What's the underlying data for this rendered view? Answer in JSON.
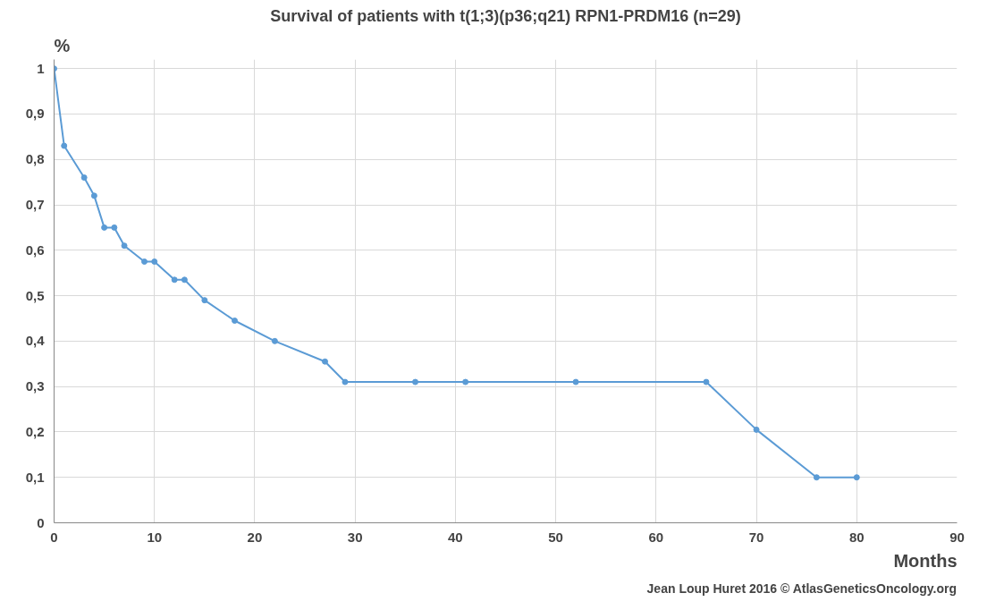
{
  "chart_data": {
    "type": "line",
    "title": "Survival of patients with t(1;3)(p36;q21) RPN1-PRDM16 (n=29)",
    "xlabel": "Months",
    "ylabel": "%",
    "annotations": [
      "Jean Loup Huret 2016 © AtlasGeneticsOncology.org"
    ],
    "x": [
      0,
      1,
      3,
      4,
      5,
      6,
      7,
      9,
      10,
      12,
      13,
      15,
      18,
      22,
      27,
      29,
      36,
      41,
      52,
      65,
      70,
      76,
      80
    ],
    "series": [
      {
        "color": "#5b9bd5",
        "values": [
          1,
          0.83,
          0.76,
          0.72,
          0.65,
          0.65,
          0.61,
          0.575,
          0.575,
          0.535,
          0.535,
          0.49,
          0.445,
          0.4,
          0.355,
          0.31,
          0.31,
          0.31,
          0.31,
          0.31,
          0.205,
          0.1,
          0.1
        ]
      }
    ],
    "xlim": [
      0,
      90
    ],
    "xticks": [
      0,
      10,
      20,
      30,
      40,
      50,
      60,
      70,
      80,
      90
    ],
    "ylim": [
      0,
      1.02
    ],
    "yticks": [
      0,
      {
        "value": 0.1,
        "label": "0,1"
      },
      {
        "value": 0.2,
        "label": "0,2"
      },
      {
        "value": 0.3,
        "label": "0,3"
      },
      {
        "value": 0.4,
        "label": "0,4"
      },
      {
        "value": 0.5,
        "label": "0,5"
      },
      {
        "value": 0.6,
        "label": "0,6"
      },
      {
        "value": 0.7,
        "label": "0,7"
      },
      {
        "value": 0.8,
        "label": "0,8"
      },
      {
        "value": 0.9,
        "label": "0,9"
      },
      1
    ],
    "grid": true,
    "marker": "circle",
    "line_style": "solid"
  }
}
